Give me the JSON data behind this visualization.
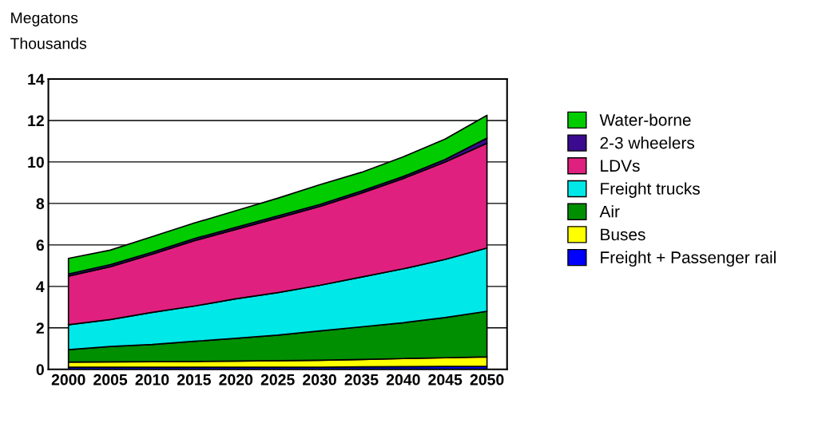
{
  "chart_data": {
    "type": "area",
    "stacked": true,
    "ylabel": "Megatons",
    "annotations": [
      "Thousands"
    ],
    "x": [
      2000,
      2005,
      2010,
      2015,
      2020,
      2025,
      2030,
      2035,
      2040,
      2045,
      2050
    ],
    "xlim": [
      1997.6,
      2052.4
    ],
    "xticks": [
      2000,
      2005,
      2010,
      2015,
      2020,
      2025,
      2030,
      2035,
      2040,
      2045,
      2050
    ],
    "ylim": [
      0,
      14
    ],
    "yticks": [
      0,
      2,
      4,
      6,
      8,
      10,
      12,
      14
    ],
    "grid": "y",
    "legend": "right",
    "series": [
      {
        "name": "Freight + Passenger rail",
        "color": "#0000ff",
        "values": [
          0.1,
          0.1,
          0.1,
          0.1,
          0.1,
          0.1,
          0.1,
          0.12,
          0.13,
          0.14,
          0.15
        ]
      },
      {
        "name": "Buses",
        "color": "#ffff00",
        "values": [
          0.25,
          0.26,
          0.27,
          0.28,
          0.3,
          0.32,
          0.34,
          0.36,
          0.39,
          0.42,
          0.45
        ]
      },
      {
        "name": "Air",
        "color": "#008f00",
        "values": [
          0.6,
          0.74,
          0.83,
          0.97,
          1.1,
          1.23,
          1.41,
          1.57,
          1.73,
          1.94,
          2.2
        ]
      },
      {
        "name": "Freight trucks",
        "color": "#00e8e8",
        "values": [
          1.2,
          1.3,
          1.55,
          1.7,
          1.9,
          2.05,
          2.2,
          2.4,
          2.6,
          2.8,
          3.05
        ]
      },
      {
        "name": "LDVs",
        "color": "#e0207f",
        "values": [
          2.35,
          2.55,
          2.8,
          3.15,
          3.35,
          3.6,
          3.8,
          4.05,
          4.35,
          4.7,
          5.05
        ]
      },
      {
        "name": "2-3 wheelers",
        "color": "#3a0a8f",
        "values": [
          0.1,
          0.1,
          0.1,
          0.1,
          0.1,
          0.1,
          0.1,
          0.1,
          0.1,
          0.12,
          0.25
        ]
      },
      {
        "name": "Water-borne",
        "color": "#00cc00",
        "values": [
          0.75,
          0.7,
          0.75,
          0.75,
          0.8,
          0.85,
          0.95,
          0.9,
          0.95,
          0.98,
          1.1
        ]
      }
    ]
  }
}
